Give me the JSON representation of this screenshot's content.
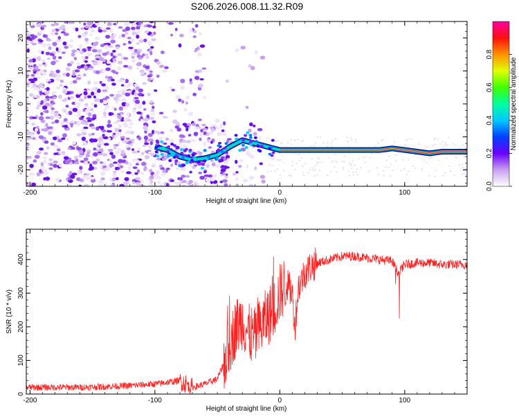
{
  "title": "S206.2026.008.11.32.R09",
  "chart_data": [
    {
      "type": "heatmap",
      "title": "S206.2026.008.11.32.R09",
      "xlabel": "Height of straight line (km)",
      "ylabel": "Frequency (Hz)",
      "xlim": [
        -203,
        150
      ],
      "ylim": [
        -25,
        25
      ],
      "xticks": [
        -200,
        -100,
        0,
        100
      ],
      "yticks": [
        -20,
        -10,
        0,
        10,
        20
      ],
      "colorbar": {
        "label": "Normalized spectral amplitude",
        "range": [
          0.0,
          1.0
        ],
        "ticks": [
          0.0,
          0.2,
          0.4,
          0.6,
          0.8
        ]
      },
      "ridge": {
        "description": "carrier frequency trace",
        "x": [
          -100,
          -90,
          -80,
          -70,
          -60,
          -50,
          -40,
          -30,
          -20,
          -10,
          0,
          10,
          20,
          40,
          60,
          80,
          90,
          100,
          110,
          120,
          130,
          140,
          150
        ],
        "freq": [
          -13,
          -14,
          -16,
          -17,
          -16.5,
          -15.5,
          -13,
          -11,
          -12,
          -13,
          -14,
          -14,
          -14,
          -14,
          -14,
          -14,
          -13.5,
          -14,
          -14.5,
          -15,
          -14.5,
          -14.5,
          -14.5
        ]
      }
    },
    {
      "type": "line",
      "xlabel": "Height of straight line (km)",
      "ylabel": "SNR (10 * v/v)",
      "xlim": [
        -203,
        150
      ],
      "ylim": [
        0,
        490
      ],
      "xticks": [
        -200,
        -100,
        0,
        100
      ],
      "yticks": [
        0,
        100,
        200,
        300,
        400
      ],
      "series": [
        {
          "name": "SNR",
          "color": "#ff2020",
          "x": [
            -200,
            -180,
            -160,
            -140,
            -120,
            -100,
            -90,
            -80,
            -75,
            -70,
            -60,
            -50,
            -45,
            -40,
            -35,
            -30,
            -25,
            -20,
            -15,
            -10,
            -5,
            0,
            5,
            10,
            12,
            15,
            20,
            25,
            30,
            40,
            50,
            60,
            70,
            80,
            90,
            95,
            100,
            110,
            120,
            130,
            140,
            150
          ],
          "values": [
            20,
            20,
            20,
            22,
            25,
            30,
            35,
            40,
            30,
            20,
            30,
            45,
            90,
            150,
            200,
            220,
            180,
            170,
            200,
            230,
            250,
            300,
            330,
            300,
            200,
            320,
            360,
            380,
            390,
            400,
            410,
            410,
            405,
            400,
            395,
            360,
            385,
            390,
            390,
            385,
            385,
            385
          ]
        }
      ]
    }
  ]
}
